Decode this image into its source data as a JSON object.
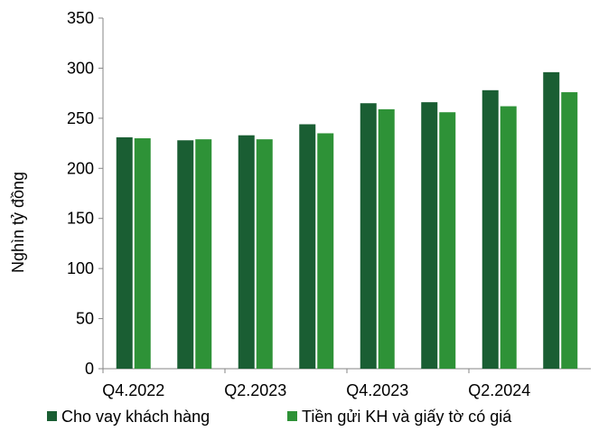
{
  "chart_data": {
    "type": "bar",
    "categories": [
      "Q4.2022",
      "Q1.2023",
      "Q2.2023",
      "Q3.2023",
      "Q4.2023",
      "Q1.2024",
      "Q2.2024",
      "Q3.2024"
    ],
    "tick_labels": [
      "Q4.2022",
      "",
      "Q2.2023",
      "",
      "Q4.2023",
      "",
      "Q2.2024",
      ""
    ],
    "series": [
      {
        "name": "Cho vay khách hàng",
        "color": "#1a5e33",
        "values": [
          231,
          228,
          233,
          244,
          265,
          266,
          278,
          296
        ]
      },
      {
        "name": "Tiền gửi KH và giấy tờ có giá",
        "color": "#2e9237",
        "values": [
          230,
          229,
          229,
          235,
          259,
          256,
          262,
          276
        ]
      }
    ],
    "ylabel": "Nghìn tỷ đồng",
    "xlabel": "",
    "ylim": [
      0,
      350
    ],
    "yticks": [
      0,
      50,
      100,
      150,
      200,
      250,
      300,
      350
    ],
    "grid": false,
    "legend_position": "bottom"
  }
}
